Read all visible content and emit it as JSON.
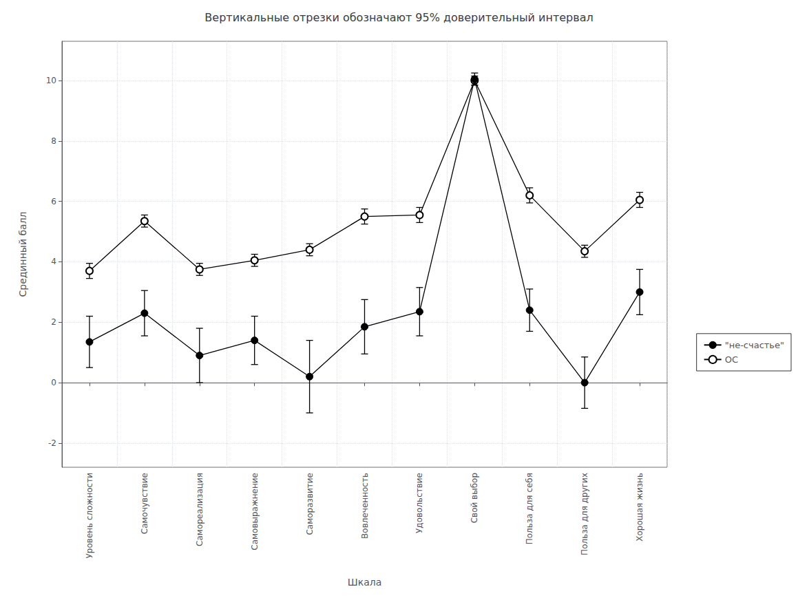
{
  "chart_data": {
    "type": "line",
    "title": "Вертикальные отрезки обозначают 95% доверительный интервал",
    "xlabel": "Шкала",
    "ylabel": "Срединный балл",
    "categories": [
      "Уровень сложности",
      "Самочувствие",
      "Самореализация",
      "Самовыражнение",
      "Саморазвитие",
      "Вовлеченность",
      "Удовольствие",
      "Свой выбор",
      "Польза для себя",
      "Польза для других",
      "Хорошая жизнь"
    ],
    "series": [
      {
        "name": "\"не-счастье\"",
        "color": "black",
        "marker": "circle",
        "values": [
          1.35,
          2.3,
          0.9,
          1.4,
          0.2,
          1.85,
          2.35,
          10.05,
          2.4,
          0.0,
          3.0
        ],
        "errors": [
          0.85,
          0.75,
          0.9,
          0.8,
          1.2,
          0.9,
          0.8,
          0.2,
          0.7,
          0.85,
          0.75
        ]
      },
      {
        "name": "ОС",
        "color": "black",
        "marker": "emptyCircle",
        "values": [
          3.7,
          5.35,
          3.75,
          4.05,
          4.4,
          5.5,
          5.55,
          10.0,
          6.2,
          4.35,
          6.05
        ],
        "errors": [
          0.25,
          0.2,
          0.2,
          0.2,
          0.2,
          0.25,
          0.25,
          0.15,
          0.25,
          0.2,
          0.25
        ]
      }
    ],
    "ylim": [
      -2.8,
      11.3
    ],
    "yticks": [
      -2,
      0,
      2,
      4,
      6,
      8,
      10
    ],
    "grid": true,
    "legend": "right"
  }
}
